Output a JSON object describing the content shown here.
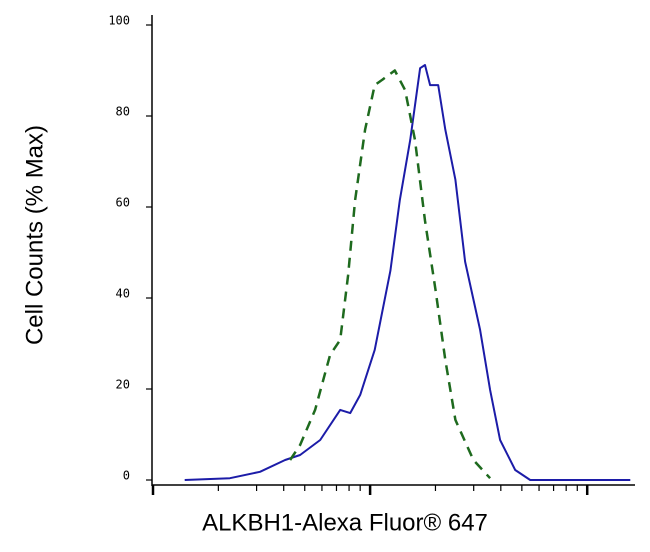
{
  "chart_data": {
    "type": "line",
    "y_label": "Cell Counts (% Max)",
    "x_label": "ALKBH1-Alexa Fluor® 647",
    "xscale": "log",
    "xlim": [
      1,
      166
    ],
    "xticks": [
      1,
      2,
      3,
      4,
      5,
      6,
      7,
      8,
      9,
      10,
      20,
      30,
      40,
      50,
      60,
      70,
      80,
      90,
      100
    ],
    "ylim": [
      0,
      100
    ],
    "yticks": [
      0,
      20,
      40,
      60,
      80,
      100
    ],
    "grid": false,
    "series": [
      {
        "color": "#1c1ca8",
        "linestyle": "solid",
        "x": [
          1.4,
          2.26,
          3.11,
          4.06,
          4.76,
          5.89,
          7.28,
          8.1,
          9.0,
          10.5,
          12.4,
          13.7,
          15.3,
          17.0,
          17.9,
          18.9,
          20.6,
          22.2,
          24.7,
          27.4,
          32.1,
          35.7,
          39.7,
          46.6,
          54.6,
          158
        ],
        "values": [
          0,
          0.4,
          1.8,
          4.4,
          5.5,
          8.8,
          15.4,
          14.7,
          18.7,
          28.6,
          46,
          61.5,
          74.7,
          90.5,
          91.2,
          86.8,
          86.8,
          77,
          66,
          48,
          33,
          19.8,
          8.8,
          2.2,
          0,
          0
        ]
      },
      {
        "color": "#1e6a1e",
        "linestyle": "dashed",
        "x": [
          4.28,
          4.76,
          5.58,
          6.54,
          7.28,
          7.92,
          8.53,
          9.48,
          10.5,
          11.4,
          13.0,
          14.5,
          16.1,
          17.9,
          20.0,
          22.2,
          24.7,
          29.9,
          35.7
        ],
        "values": [
          4.4,
          7.7,
          15.4,
          27.5,
          30.8,
          45,
          61.5,
          77,
          86.8,
          88,
          90,
          85.7,
          74.7,
          57,
          41.8,
          26.4,
          13.2,
          4.4,
          0.4
        ]
      }
    ]
  }
}
